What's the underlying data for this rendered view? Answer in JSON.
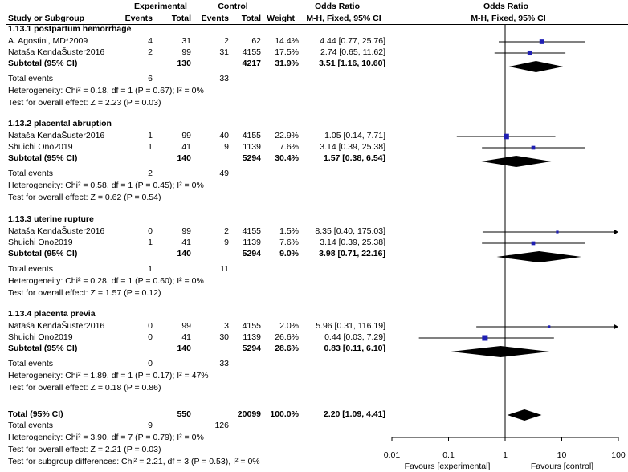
{
  "header": {
    "experimental": "Experimental",
    "control": "Control",
    "odds_ratio": "Odds Ratio",
    "study_or_subgroup": "Study or Subgroup",
    "events": "Events",
    "total": "Total",
    "weight": "Weight",
    "method_ci": "M-H, Fixed, 95% CI"
  },
  "subgroups": [
    {
      "title": "1.13.1 postpartum hemorrhage",
      "studies": [
        {
          "name": "A. Agostini, MD*2009",
          "exp_events": "4",
          "exp_total": "31",
          "ctl_events": "2",
          "ctl_total": "62",
          "weight": "14.4%",
          "or_text": "4.44 [0.77, 25.76]"
        },
        {
          "name": "Nataša KendaŠuster2016",
          "exp_events": "2",
          "exp_total": "99",
          "ctl_events": "31",
          "ctl_total": "4155",
          "weight": "17.5%",
          "or_text": "2.74 [0.65, 11.62]"
        }
      ],
      "subtotal": {
        "label": "Subtotal (95% CI)",
        "exp_total": "130",
        "ctl_total": "4217",
        "weight": "31.9%",
        "or_text": "3.51 [1.16, 10.60]"
      },
      "total_events": {
        "label": "Total events",
        "exp": "6",
        "ctl": "33"
      },
      "heterogeneity": "Heterogeneity: Chi² = 0.18, df = 1 (P = 0.67); I² = 0%",
      "overall_effect": "Test for overall effect: Z = 2.23 (P = 0.03)"
    },
    {
      "title": "1.13.2 placental abruption",
      "studies": [
        {
          "name": "Nataša KendaŠuster2016",
          "exp_events": "1",
          "exp_total": "99",
          "ctl_events": "40",
          "ctl_total": "4155",
          "weight": "22.9%",
          "or_text": "1.05 [0.14, 7.71]"
        },
        {
          "name": "Shuichi Ono2019",
          "exp_events": "1",
          "exp_total": "41",
          "ctl_events": "9",
          "ctl_total": "1139",
          "weight": "7.6%",
          "or_text": "3.14 [0.39, 25.38]"
        }
      ],
      "subtotal": {
        "label": "Subtotal (95% CI)",
        "exp_total": "140",
        "ctl_total": "5294",
        "weight": "30.4%",
        "or_text": "1.57 [0.38, 6.54]"
      },
      "total_events": {
        "label": "Total events",
        "exp": "2",
        "ctl": "49"
      },
      "heterogeneity": "Heterogeneity: Chi² = 0.58, df = 1 (P = 0.45); I² = 0%",
      "overall_effect": "Test for overall effect: Z = 0.62 (P = 0.54)"
    },
    {
      "title": "1.13.3 uterine rupture",
      "studies": [
        {
          "name": "Nataša KendaŠuster2016",
          "exp_events": "0",
          "exp_total": "99",
          "ctl_events": "2",
          "ctl_total": "4155",
          "weight": "1.5%",
          "or_text": "8.35 [0.40, 175.03]"
        },
        {
          "name": "Shuichi Ono2019",
          "exp_events": "1",
          "exp_total": "41",
          "ctl_events": "9",
          "ctl_total": "1139",
          "weight": "7.6%",
          "or_text": "3.14 [0.39, 25.38]"
        }
      ],
      "subtotal": {
        "label": "Subtotal (95% CI)",
        "exp_total": "140",
        "ctl_total": "5294",
        "weight": "9.0%",
        "or_text": "3.98 [0.71, 22.16]"
      },
      "total_events": {
        "label": "Total events",
        "exp": "1",
        "ctl": "11"
      },
      "heterogeneity": "Heterogeneity: Chi² = 0.28, df = 1 (P = 0.60); I² = 0%",
      "overall_effect": "Test for overall effect: Z = 1.57 (P = 0.12)"
    },
    {
      "title": "1.13.4 placenta previa",
      "studies": [
        {
          "name": "Nataša KendaŠuster2016",
          "exp_events": "0",
          "exp_total": "99",
          "ctl_events": "3",
          "ctl_total": "4155",
          "weight": "2.0%",
          "or_text": "5.96 [0.31, 116.19]"
        },
        {
          "name": "Shuichi Ono2019",
          "exp_events": "0",
          "exp_total": "41",
          "ctl_events": "30",
          "ctl_total": "1139",
          "weight": "26.6%",
          "or_text": "0.44 [0.03, 7.29]"
        }
      ],
      "subtotal": {
        "label": "Subtotal (95% CI)",
        "exp_total": "140",
        "ctl_total": "5294",
        "weight": "28.6%",
        "or_text": "0.83 [0.11, 6.10]"
      },
      "total_events": {
        "label": "Total events",
        "exp": "0",
        "ctl": "33"
      },
      "heterogeneity": "Heterogeneity: Chi² = 1.89, df = 1 (P = 0.17); I² = 47%",
      "overall_effect": "Test for overall effect: Z = 0.18 (P = 0.86)"
    }
  ],
  "overall": {
    "label": "Total (95% CI)",
    "exp_total": "550",
    "ctl_total": "20099",
    "weight": "100.0%",
    "or_text": "2.20 [1.09, 4.41]",
    "total_events": {
      "label": "Total events",
      "exp": "9",
      "ctl": "126"
    },
    "heterogeneity": "Heterogeneity: Chi² = 3.90, df = 7 (P = 0.79); I² = 0%",
    "overall_effect": "Test for overall effect: Z = 2.21 (P = 0.03)",
    "subgroup_differences": "Test for subgroup differences: Chi² = 2.21, df = 3 (P = 0.53), I² = 0%"
  },
  "axis": {
    "ticks": [
      "0.01",
      "0.1",
      "1",
      "10",
      "100"
    ],
    "favours_left": "Favours [experimental]",
    "favours_right": "Favours [control]"
  },
  "colors": {
    "study_marker": "#1f1fb4",
    "diamond": "#000000",
    "line": "#000000"
  },
  "chart_data": {
    "type": "forest",
    "title": "Odds Ratio",
    "xlabel": "M-H, Fixed, 95% CI",
    "xscale": "log",
    "xlim": [
      0.01,
      100
    ],
    "reference_line": 1,
    "studies": [
      {
        "subgroup": "1.13.1",
        "name": "A. Agostini, MD*2009",
        "or": 4.44,
        "lo": 0.77,
        "hi": 25.76,
        "weight": 14.4
      },
      {
        "subgroup": "1.13.1",
        "name": "Nataša KendaŠuster2016",
        "or": 2.74,
        "lo": 0.65,
        "hi": 11.62,
        "weight": 17.5
      },
      {
        "subgroup": "1.13.2",
        "name": "Nataša KendaŠuster2016",
        "or": 1.05,
        "lo": 0.14,
        "hi": 7.71,
        "weight": 22.9
      },
      {
        "subgroup": "1.13.2",
        "name": "Shuichi Ono2019",
        "or": 3.14,
        "lo": 0.39,
        "hi": 25.38,
        "weight": 7.6
      },
      {
        "subgroup": "1.13.3",
        "name": "Nataša KendaŠuster2016",
        "or": 8.35,
        "lo": 0.4,
        "hi": 175.03,
        "weight": 1.5
      },
      {
        "subgroup": "1.13.3",
        "name": "Shuichi Ono2019",
        "or": 3.14,
        "lo": 0.39,
        "hi": 25.38,
        "weight": 7.6
      },
      {
        "subgroup": "1.13.4",
        "name": "Nataša KendaŠuster2016",
        "or": 5.96,
        "lo": 0.31,
        "hi": 116.19,
        "weight": 2.0
      },
      {
        "subgroup": "1.13.4",
        "name": "Shuichi Ono2019",
        "or": 0.44,
        "lo": 0.03,
        "hi": 7.29,
        "weight": 26.6
      }
    ],
    "subtotals": [
      {
        "subgroup": "1.13.1",
        "or": 3.51,
        "lo": 1.16,
        "hi": 10.6,
        "weight": 31.9
      },
      {
        "subgroup": "1.13.2",
        "or": 1.57,
        "lo": 0.38,
        "hi": 6.54,
        "weight": 30.4
      },
      {
        "subgroup": "1.13.3",
        "or": 3.98,
        "lo": 0.71,
        "hi": 22.16,
        "weight": 9.0
      },
      {
        "subgroup": "1.13.4",
        "or": 0.83,
        "lo": 0.11,
        "hi": 6.1,
        "weight": 28.6
      }
    ],
    "overall": {
      "or": 2.2,
      "lo": 1.09,
      "hi": 4.41,
      "weight": 100.0
    }
  }
}
